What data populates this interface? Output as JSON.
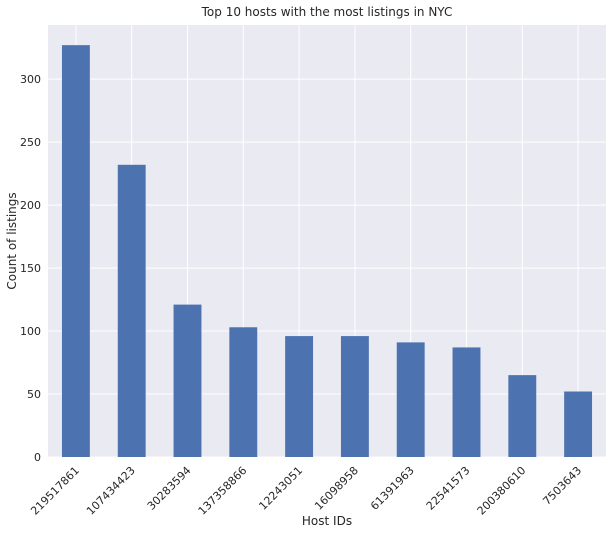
{
  "chart_data": {
    "type": "bar",
    "title": "Top 10 hosts with the most listings in NYC",
    "xlabel": "Host IDs",
    "ylabel": "Count of listings",
    "categories": [
      "219517861",
      "107434423",
      "30283594",
      "137358866",
      "12243051",
      "16098958",
      "61391963",
      "22541573",
      "200380610",
      "7503643"
    ],
    "values": [
      327,
      232,
      121,
      103,
      96,
      96,
      91,
      87,
      65,
      52
    ],
    "ylim": [
      0,
      343
    ],
    "yticks": [
      0,
      50,
      100,
      150,
      200,
      250,
      300
    ],
    "grid": true,
    "background": "#EAEAF2",
    "bar_color": "#4C72B0",
    "grid_color": "#ffffff"
  }
}
